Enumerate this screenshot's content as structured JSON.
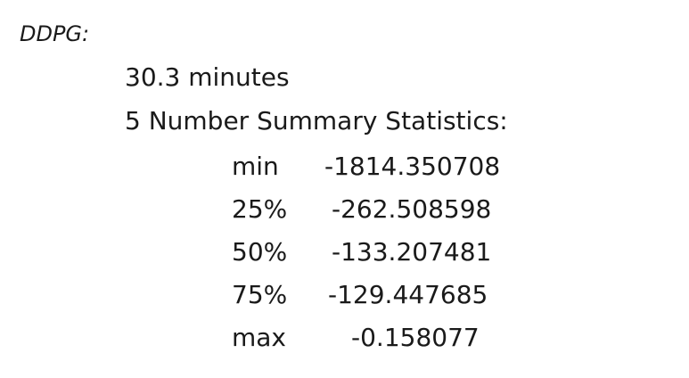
{
  "heading": "DDPG:",
  "duration": "30.3 minutes",
  "summary_title": "5 Number Summary Statistics:",
  "stats": [
    {
      "label": "min",
      "value": "-1814.350708"
    },
    {
      "label": "25%",
      "value": "-262.508598"
    },
    {
      "label": "50%",
      "value": "-133.207481"
    },
    {
      "label": "75%",
      "value": "-129.447685"
    },
    {
      "label": "max",
      "value": "-0.158077"
    }
  ]
}
